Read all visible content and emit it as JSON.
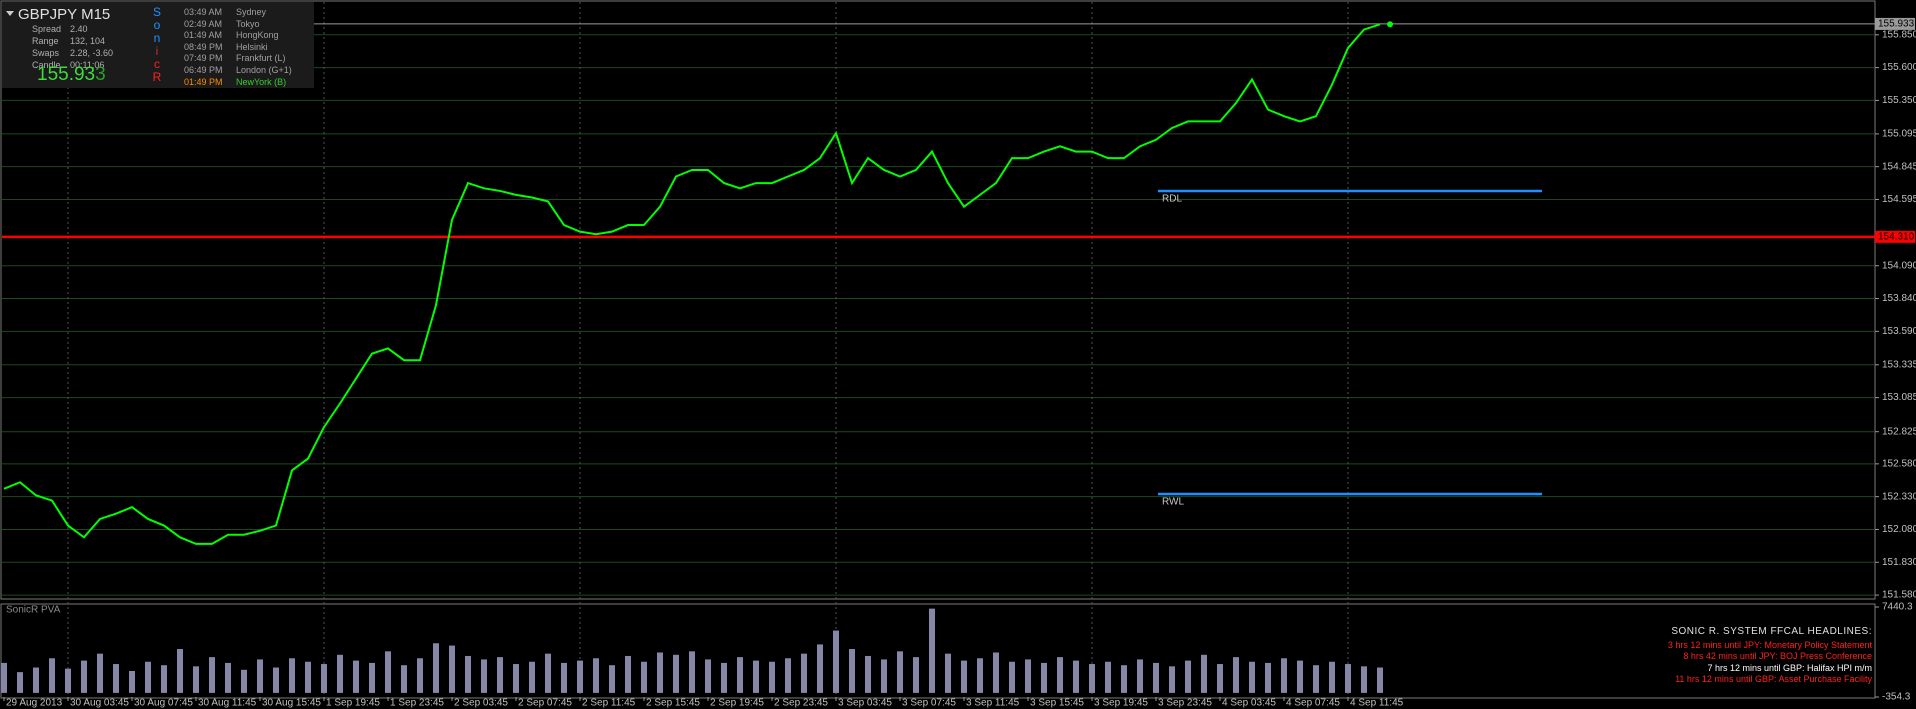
{
  "info_panel": {
    "symbol": "GBPJPY  M15",
    "rows": [
      {
        "label": "Spread",
        "value": "2.40"
      },
      {
        "label": "Range",
        "value": "132, 104"
      },
      {
        "label": "Swaps",
        "value": "2.28, -3.60"
      },
      {
        "label": "Candle",
        "value": "00:11:06"
      }
    ],
    "price": {
      "main": "155.93",
      "last": "3"
    },
    "brand": [
      {
        "text": "S",
        "color": "#1e90ff"
      },
      {
        "text": "o",
        "color": "#1e90ff"
      },
      {
        "text": "n",
        "color": "#1e90ff"
      },
      {
        "text": "i",
        "color": "#c03030"
      },
      {
        "text": "c",
        "color": "#ff2020"
      },
      {
        "text": "R",
        "color": "#ff2020"
      }
    ],
    "sessions": [
      {
        "time": "03:49 AM",
        "city": "Sydney",
        "time_color": "#a0a0a0",
        "city_color": "#a0a0a0"
      },
      {
        "time": "02:49 AM",
        "city": "Tokyo",
        "time_color": "#a0a0a0",
        "city_color": "#a0a0a0"
      },
      {
        "time": "01:49 AM",
        "city": "HongKong",
        "time_color": "#a0a0a0",
        "city_color": "#a0a0a0"
      },
      {
        "time": "08:49 PM",
        "city": "Helsinki",
        "time_color": "#a0a0a0",
        "city_color": "#a0a0a0"
      },
      {
        "time": "07:49 PM",
        "city": "Frankfurt  (L)",
        "time_color": "#a0a0a0",
        "city_color": "#a0a0a0"
      },
      {
        "time": "06:49 PM",
        "city": "London  (G+1)",
        "time_color": "#a0a0a0",
        "city_color": "#a0a0a0"
      },
      {
        "time": "01:49 PM",
        "city": "NewYork  (B)",
        "time_color": "#ff8c00",
        "city_color": "#32cd32"
      }
    ]
  },
  "chart_data": [
    {
      "type": "line",
      "color": "#00ff00",
      "categories": [
        "29 Aug 2013",
        null,
        null,
        null,
        "30 Aug 03:45",
        null,
        null,
        null,
        "30 Aug 07:45",
        null,
        null,
        null,
        "30 Aug 11:45",
        null,
        null,
        null,
        "30 Aug 15:45",
        null,
        null,
        null,
        "1 Sep 19:45",
        null,
        null,
        null,
        "1 Sep 23:45",
        null,
        null,
        null,
        "2 Sep 03:45",
        null,
        null,
        null,
        "2 Sep 07:45",
        null,
        null,
        null,
        "2 Sep 11:45",
        null,
        null,
        null,
        "2 Sep 15:45",
        null,
        null,
        null,
        "2 Sep 19:45",
        null,
        null,
        null,
        "2 Sep 23:45",
        null,
        null,
        null,
        "3 Sep 03:45",
        null,
        null,
        null,
        "3 Sep 07:45",
        null,
        null,
        null,
        "3 Sep 11:45",
        null,
        null,
        null,
        "3 Sep 15:45",
        null,
        null,
        null,
        "3 Sep 19:45",
        null,
        null,
        null,
        "3 Sep 23:45",
        null,
        null,
        null,
        "4 Sep 03:45",
        null,
        null,
        null,
        "4 Sep 07:45",
        null,
        null,
        null,
        "4 Sep 11:45",
        null,
        null
      ],
      "values": [
        152.39,
        152.44,
        152.34,
        152.3,
        152.11,
        152.02,
        152.16,
        152.2,
        152.25,
        152.16,
        152.11,
        152.02,
        151.97,
        151.97,
        152.04,
        152.04,
        152.07,
        152.11,
        152.53,
        152.62,
        152.86,
        153.04,
        153.23,
        153.42,
        153.46,
        153.37,
        153.37,
        153.79,
        154.44,
        154.72,
        154.68,
        154.66,
        154.63,
        154.61,
        154.58,
        154.4,
        154.35,
        154.33,
        154.35,
        154.4,
        154.4,
        154.54,
        154.77,
        154.82,
        154.82,
        154.72,
        154.68,
        154.72,
        154.72,
        154.77,
        154.82,
        154.91,
        155.1,
        154.72,
        154.91,
        154.82,
        154.77,
        154.82,
        154.96,
        154.72,
        154.54,
        154.63,
        154.72,
        154.91,
        154.91,
        154.96,
        155.0,
        154.96,
        154.96,
        154.91,
        154.91,
        155.0,
        155.05,
        155.14,
        155.19,
        155.19,
        155.19,
        155.33,
        155.51,
        155.28,
        155.23,
        155.19,
        155.23,
        155.47,
        155.75,
        155.89,
        155.93
      ],
      "ylim": [
        151.55,
        156.1
      ],
      "yticks": [
        {
          "value": 155.85,
          "label": "155.850"
        },
        {
          "value": 155.6,
          "label": "155.600"
        },
        {
          "value": 155.35,
          "label": "155.350"
        },
        {
          "value": 155.095,
          "label": "155.095"
        },
        {
          "value": 154.845,
          "label": "154.845"
        },
        {
          "value": 154.595,
          "label": "154.595"
        },
        {
          "value": 154.09,
          "label": "154.090"
        },
        {
          "value": 153.84,
          "label": "153.840"
        },
        {
          "value": 153.59,
          "label": "153.590"
        },
        {
          "value": 153.335,
          "label": "153.335"
        },
        {
          "value": 153.085,
          "label": "153.085"
        },
        {
          "value": 152.825,
          "label": "152.825"
        },
        {
          "value": 152.58,
          "label": "152.580"
        },
        {
          "value": 152.33,
          "label": "152.330"
        },
        {
          "value": 152.08,
          "label": "152.080"
        },
        {
          "value": 151.83,
          "label": "151.830"
        },
        {
          "value": 151.58,
          "label": "151.580"
        }
      ],
      "grid": true,
      "levels": [
        {
          "label": "RDL",
          "value": 154.66,
          "color": "#1e8fff"
        },
        {
          "label": "RWL",
          "value": 152.35,
          "color": "#1e8fff"
        }
      ],
      "price_lines": [
        {
          "value": 155.933,
          "label": "155.933",
          "color": "#9a9a9a"
        },
        {
          "value": 154.31,
          "label": "154.310",
          "color": "#ff0000"
        }
      ]
    },
    {
      "type": "bar",
      "title": "SonicR PVA",
      "color": "#8686a8",
      "values": [
        2600,
        1800,
        2200,
        3000,
        2100,
        2800,
        3400,
        2500,
        1900,
        2700,
        2400,
        3800,
        2300,
        3100,
        2600,
        2000,
        2900,
        2200,
        3000,
        2700,
        2500,
        3300,
        2800,
        2600,
        3600,
        2400,
        3000,
        4300,
        4100,
        3200,
        2900,
        3100,
        2500,
        2700,
        3400,
        2600,
        2800,
        3000,
        2400,
        3200,
        2700,
        3500,
        3300,
        3600,
        2900,
        2600,
        3100,
        2800,
        2700,
        3000,
        3400,
        4200,
        5400,
        3800,
        3200,
        2900,
        3600,
        3100,
        7300,
        3400,
        2800,
        3000,
        3500,
        2700,
        2900,
        2600,
        3100,
        2800,
        2500,
        2700,
        2400,
        2900,
        2600,
        2300,
        2800,
        3300,
        2500,
        3100,
        2700,
        2600,
        3000,
        2800,
        2400,
        2700,
        2500,
        2300,
        2200
      ],
      "ylim": [
        -354.3,
        7440.3
      ],
      "yticks": [
        7440.3,
        -354.3
      ]
    }
  ],
  "headlines": {
    "title": "SONIC R. SYSTEM  FFCAL HEADLINES:",
    "items": [
      {
        "text": "3 hrs 12 mins until JPY: Monetary Policy Statement",
        "color": "#ff2020"
      },
      {
        "text": "8 hrs 42 mins until JPY: BOJ Press Conference",
        "color": "#ff2020"
      },
      {
        "text": "7 hrs 12 mins until GBP: Halifax HPI m/m",
        "color": "#ffffff"
      },
      {
        "text": "11 hrs 12 mins until GBP: Asset Purchase Facility",
        "color": "#ff2020"
      }
    ]
  }
}
